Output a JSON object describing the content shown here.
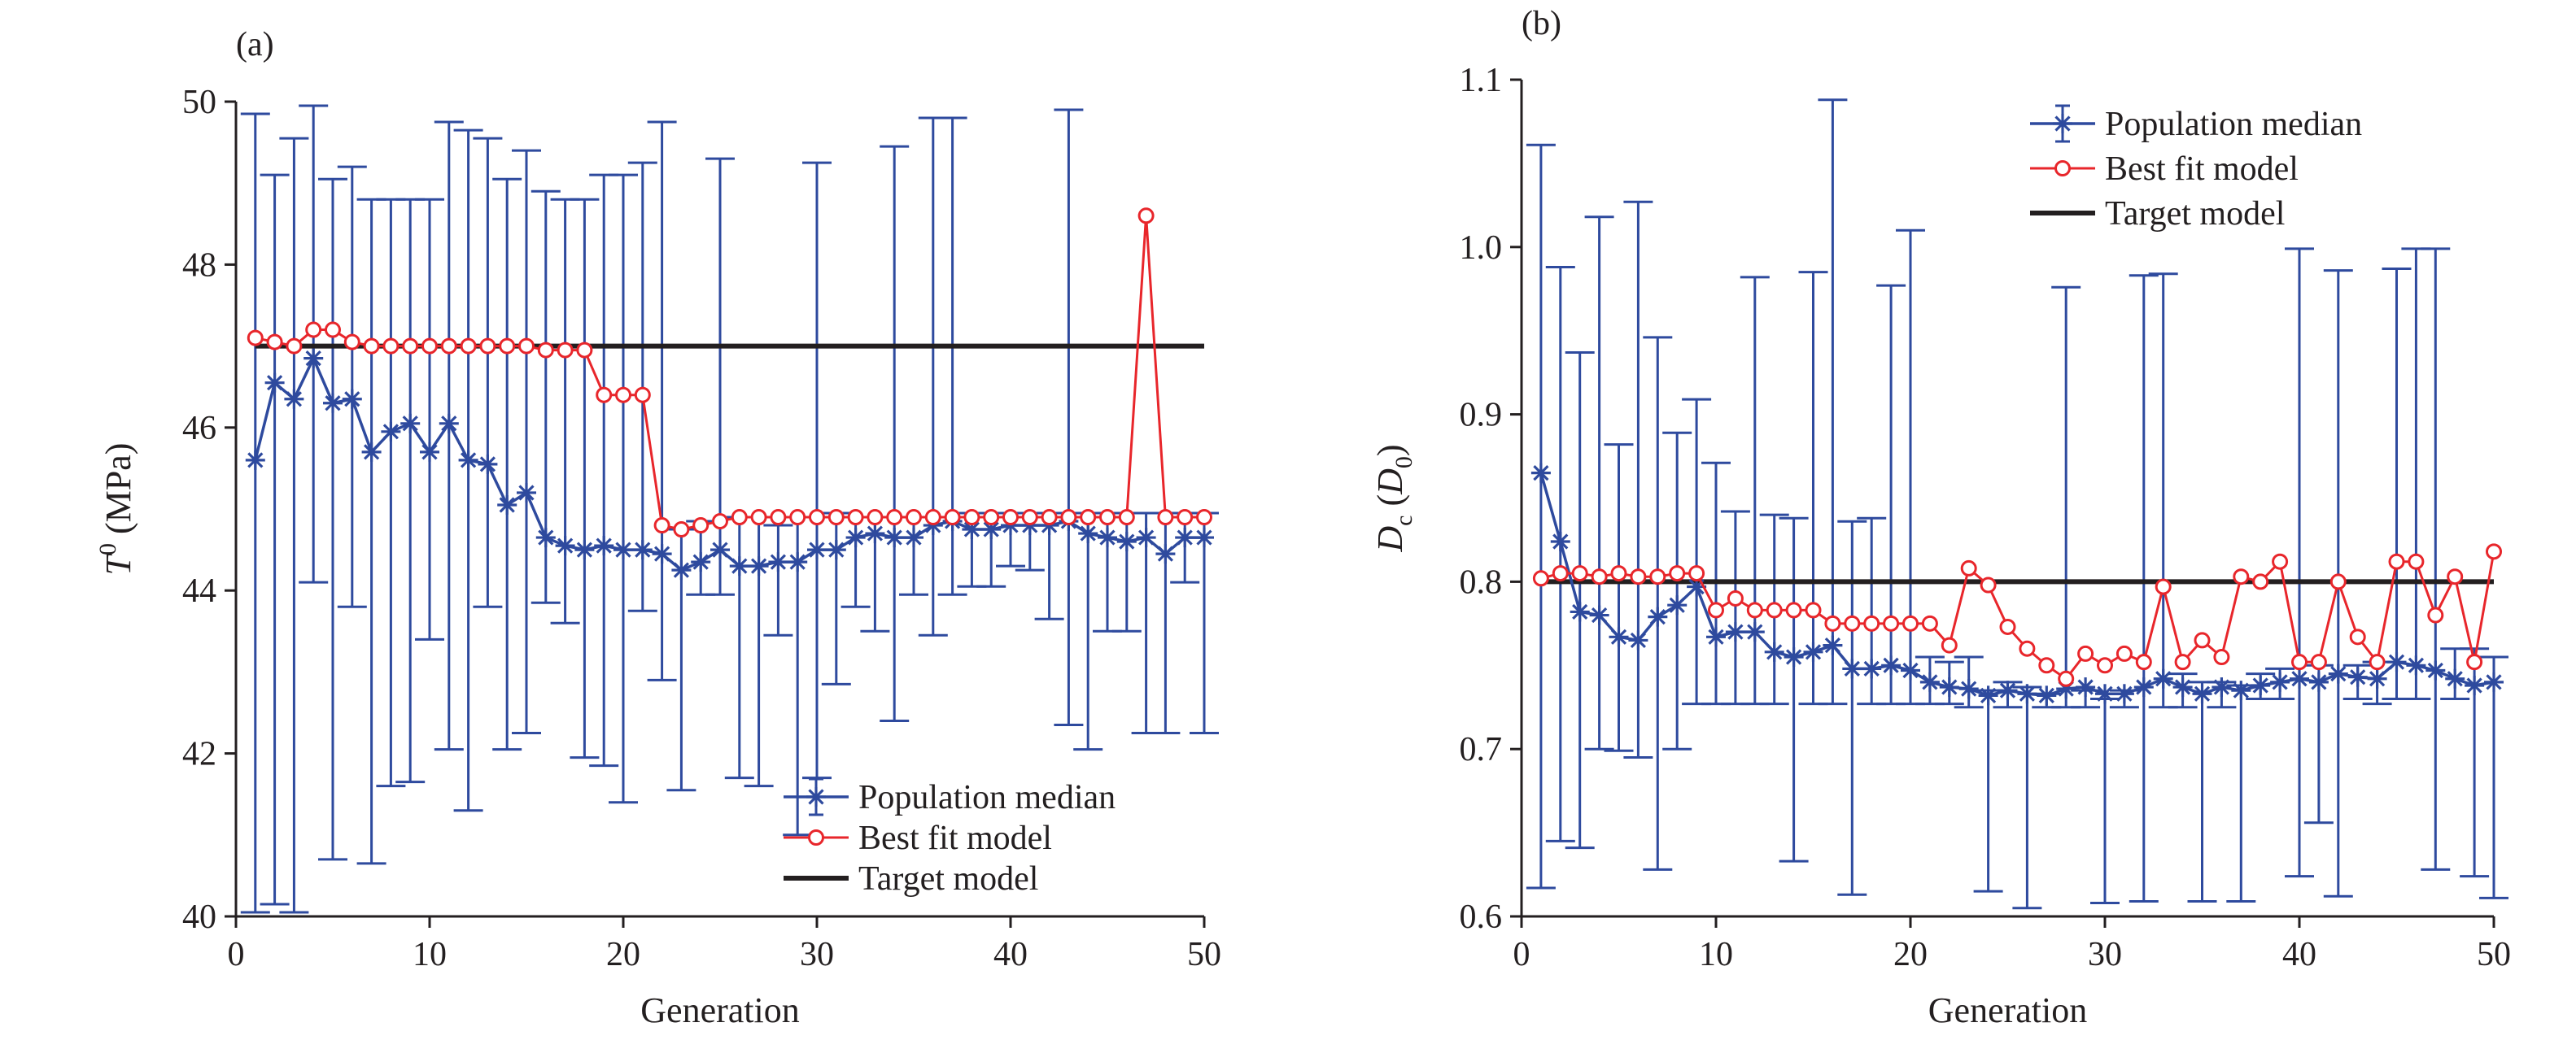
{
  "colors": {
    "population": "#2e4a9e",
    "best_fit": "#e8262b",
    "target": "#231f20",
    "axis": "#231f20"
  },
  "legend": {
    "population": "Population median",
    "best_fit": "Best fit model",
    "target": "Target model"
  },
  "chart_data": [
    {
      "type": "line",
      "panel_label": "(a)",
      "xlabel": "Generation",
      "ylabel": {
        "base": "T",
        "sup": "0",
        "rest": " (MPa)"
      },
      "xlim": [
        0,
        50
      ],
      "ylim": [
        40,
        50
      ],
      "xticks": [
        0,
        10,
        20,
        30,
        40,
        50
      ],
      "xtick_labels": [
        "0",
        "10",
        "20",
        "30",
        "40",
        "50"
      ],
      "yticks": [
        40,
        42,
        44,
        46,
        48,
        50
      ],
      "ytick_labels": [
        "40",
        "42",
        "44",
        "46",
        "48",
        "50"
      ],
      "grid": false,
      "legend_position": "bottom-right",
      "x": [
        1,
        2,
        3,
        4,
        5,
        6,
        7,
        8,
        9,
        10,
        11,
        12,
        13,
        14,
        15,
        16,
        17,
        18,
        19,
        20,
        21,
        22,
        23,
        24,
        25,
        26,
        27,
        28,
        29,
        30,
        31,
        32,
        33,
        34,
        35,
        36,
        37,
        38,
        39,
        40,
        41,
        42,
        43,
        44,
        45,
        46,
        47,
        48,
        49,
        50
      ],
      "series": [
        {
          "name": "Population median",
          "marker": "asterisk",
          "values": [
            45.6,
            46.55,
            46.35,
            46.85,
            46.3,
            46.35,
            45.7,
            45.95,
            46.05,
            45.7,
            46.05,
            45.6,
            45.55,
            45.05,
            45.2,
            44.65,
            44.55,
            44.5,
            44.55,
            44.5,
            44.5,
            44.45,
            44.25,
            44.35,
            44.5,
            44.3,
            44.3,
            44.35,
            44.35,
            44.5,
            44.5,
            44.65,
            44.7,
            44.65,
            44.65,
            44.8,
            44.85,
            44.75,
            44.75,
            44.8,
            44.8,
            44.8,
            44.85,
            44.7,
            44.65,
            44.6,
            44.65,
            44.45,
            44.65,
            44.65
          ],
          "upper": [
            49.85,
            49.1,
            49.55,
            49.95,
            49.05,
            49.2,
            48.8,
            48.8,
            48.8,
            48.8,
            49.75,
            49.65,
            49.55,
            49.05,
            49.4,
            48.9,
            48.8,
            48.8,
            49.1,
            49.1,
            49.25,
            49.75,
            44.75,
            44.85,
            49.3,
            44.9,
            44.9,
            44.8,
            44.9,
            49.25,
            44.95,
            44.9,
            44.9,
            49.45,
            44.9,
            49.8,
            49.8,
            44.95,
            44.95,
            44.95,
            44.95,
            44.95,
            49.9,
            44.95,
            44.95,
            44.95,
            44.95,
            44.95,
            44.95,
            44.95
          ],
          "lower": [
            40.05,
            40.15,
            40.05,
            44.1,
            40.7,
            43.8,
            40.65,
            41.6,
            41.65,
            43.4,
            42.05,
            41.3,
            43.8,
            42.05,
            42.25,
            43.85,
            43.6,
            41.95,
            41.85,
            41.4,
            43.75,
            42.9,
            41.55,
            43.95,
            43.95,
            41.7,
            41.6,
            43.45,
            41.0,
            41.7,
            42.85,
            43.8,
            43.5,
            42.4,
            43.95,
            43.45,
            43.95,
            44.05,
            44.05,
            44.3,
            44.25,
            43.65,
            42.35,
            42.05,
            43.5,
            43.5,
            42.25,
            42.25,
            44.1,
            42.25
          ]
        },
        {
          "name": "Best fit model",
          "marker": "circle",
          "values": [
            47.1,
            47.05,
            47.0,
            47.2,
            47.2,
            47.05,
            47.0,
            47.0,
            47.0,
            47.0,
            47.0,
            47.0,
            47.0,
            47.0,
            47.0,
            46.95,
            46.95,
            46.95,
            46.4,
            46.4,
            46.4,
            44.8,
            44.75,
            44.8,
            44.85,
            44.9,
            44.9,
            44.9,
            44.9,
            44.9,
            44.9,
            44.9,
            44.9,
            44.9,
            44.9,
            44.9,
            44.9,
            44.9,
            44.9,
            44.9,
            44.9,
            44.9,
            44.9,
            44.9,
            44.9,
            44.9,
            48.6,
            44.9,
            44.9,
            44.9
          ]
        },
        {
          "name": "Target model",
          "marker": "none",
          "x_range": [
            1,
            50
          ],
          "value": 47.0
        }
      ]
    },
    {
      "type": "line",
      "panel_label": "(b)",
      "xlabel": "Generation",
      "ylabel": {
        "base": "D",
        "sub": "c",
        "mid": " (",
        "base2": "D",
        "sub2": "0",
        "rest": ")"
      },
      "xlim": [
        0,
        50
      ],
      "ylim": [
        0.6,
        1.1
      ],
      "xticks": [
        0,
        10,
        20,
        30,
        40,
        50
      ],
      "xtick_labels": [
        "0",
        "10",
        "20",
        "30",
        "40",
        "50"
      ],
      "yticks": [
        0.6,
        0.7,
        0.8,
        0.9,
        1.0,
        1.1
      ],
      "ytick_labels": [
        "0.6",
        "0.7",
        "0.8",
        "0.9",
        "1.0",
        "1.1"
      ],
      "grid": false,
      "legend_position": "top-right",
      "x": [
        1,
        2,
        3,
        4,
        5,
        6,
        7,
        8,
        9,
        10,
        11,
        12,
        13,
        14,
        15,
        16,
        17,
        18,
        19,
        20,
        21,
        22,
        23,
        24,
        25,
        26,
        27,
        28,
        29,
        30,
        31,
        32,
        33,
        34,
        35,
        36,
        37,
        38,
        39,
        40,
        41,
        42,
        43,
        44,
        45,
        46,
        47,
        48,
        49,
        50
      ],
      "series": [
        {
          "name": "Population median",
          "marker": "asterisk",
          "values": [
            0.865,
            0.824,
            0.782,
            0.78,
            0.767,
            0.765,
            0.779,
            0.786,
            0.797,
            0.767,
            0.77,
            0.77,
            0.758,
            0.755,
            0.758,
            0.762,
            0.748,
            0.748,
            0.75,
            0.747,
            0.74,
            0.737,
            0.736,
            0.732,
            0.735,
            0.733,
            0.732,
            0.736,
            0.737,
            0.733,
            0.733,
            0.737,
            0.742,
            0.737,
            0.733,
            0.737,
            0.735,
            0.738,
            0.74,
            0.742,
            0.74,
            0.745,
            0.743,
            0.742,
            0.752,
            0.75,
            0.747,
            0.742,
            0.738,
            0.74
          ],
          "upper": [
            1.061,
            0.988,
            0.937,
            1.018,
            0.882,
            1.027,
            0.946,
            0.889,
            0.909,
            0.871,
            0.842,
            0.982,
            0.84,
            0.838,
            0.985,
            1.088,
            0.836,
            0.838,
            0.977,
            1.01,
            0.755,
            0.752,
            0.755,
            0.735,
            0.74,
            0.737,
            0.733,
            0.976,
            0.735,
            0.73,
            0.735,
            0.983,
            0.984,
            0.745,
            0.74,
            0.74,
            0.738,
            0.745,
            0.748,
            0.999,
            0.75,
            0.986,
            0.75,
            0.752,
            0.987,
            0.999,
            0.999,
            0.76,
            0.76,
            0.755
          ],
          "lower": [
            0.617,
            0.645,
            0.641,
            0.7,
            0.699,
            0.695,
            0.628,
            0.7,
            0.727,
            0.727,
            0.727,
            0.727,
            0.727,
            0.633,
            0.727,
            0.727,
            0.613,
            0.727,
            0.727,
            0.727,
            0.727,
            0.727,
            0.725,
            0.615,
            0.725,
            0.605,
            0.725,
            0.725,
            0.725,
            0.608,
            0.725,
            0.609,
            0.725,
            0.725,
            0.609,
            0.725,
            0.609,
            0.73,
            0.73,
            0.624,
            0.656,
            0.612,
            0.73,
            0.727,
            0.73,
            0.73,
            0.628,
            0.73,
            0.624,
            0.611
          ]
        },
        {
          "name": "Best fit model",
          "marker": "circle",
          "values": [
            0.802,
            0.805,
            0.805,
            0.803,
            0.805,
            0.803,
            0.803,
            0.805,
            0.805,
            0.783,
            0.79,
            0.783,
            0.783,
            0.783,
            0.783,
            0.775,
            0.775,
            0.775,
            0.775,
            0.775,
            0.775,
            0.762,
            0.808,
            0.798,
            0.773,
            0.76,
            0.75,
            0.742,
            0.757,
            0.75,
            0.757,
            0.752,
            0.797,
            0.752,
            0.765,
            0.755,
            0.803,
            0.8,
            0.812,
            0.752,
            0.752,
            0.8,
            0.767,
            0.752,
            0.812,
            0.812,
            0.78,
            0.803,
            0.752,
            0.818
          ]
        },
        {
          "name": "Target model",
          "marker": "none",
          "x_range": [
            1,
            50
          ],
          "value": 0.8
        }
      ]
    }
  ]
}
